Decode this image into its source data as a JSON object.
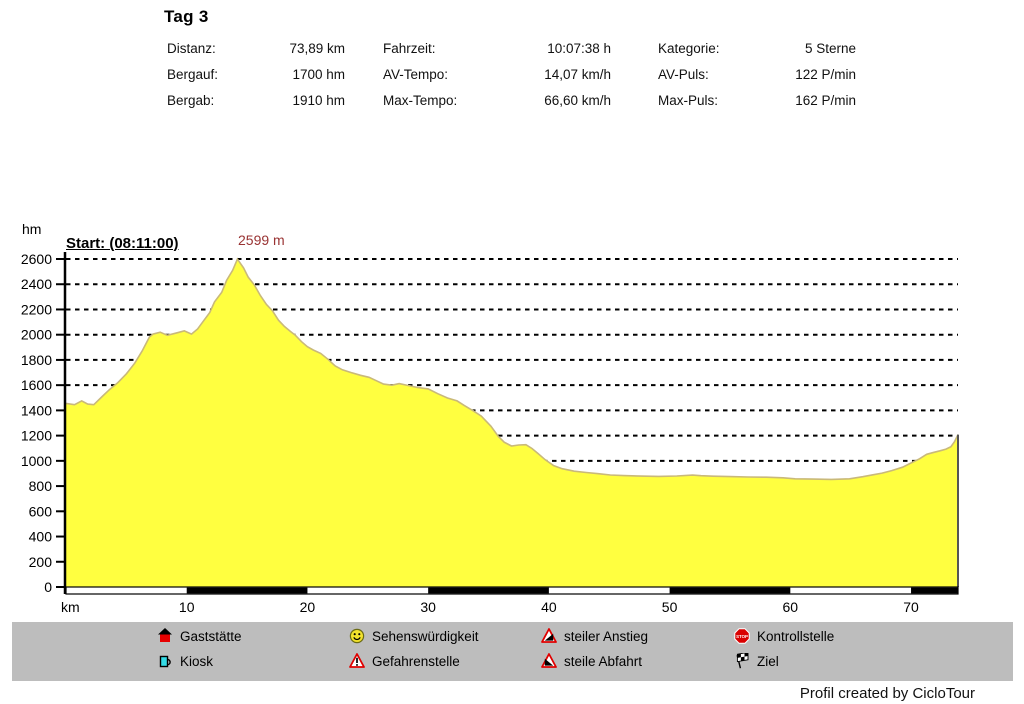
{
  "header": {
    "title": "Tag 3",
    "stats": [
      {
        "label": "Distanz:",
        "value": "73,89 km"
      },
      {
        "label": "Fahrzeit:",
        "value": "10:07:38 h"
      },
      {
        "label": "Kategorie:",
        "value": "5 Sterne"
      },
      {
        "label": "Bergauf:",
        "value": "1700 hm"
      },
      {
        "label": "AV-Tempo:",
        "value": "14,07 km/h"
      },
      {
        "label": "AV-Puls:",
        "value": "122 P/min"
      },
      {
        "label": "Bergab:",
        "value": "1910 hm"
      },
      {
        "label": "Max-Tempo:",
        "value": "66,60 km/h"
      },
      {
        "label": "Max-Puls:",
        "value": "162 P/min"
      }
    ]
  },
  "chart_data": {
    "type": "area",
    "title": "Tag 3 elevation profile",
    "xlabel": "km",
    "ylabel": "hm",
    "xlim": [
      0,
      73.89
    ],
    "ylim": [
      0,
      2600
    ],
    "xticks": [
      10,
      20,
      30,
      40,
      50,
      60,
      70
    ],
    "yticks": [
      0,
      200,
      400,
      600,
      800,
      1000,
      1200,
      1400,
      1600,
      1800,
      2000,
      2200,
      2400,
      2600
    ],
    "grid": "horizontal-dashed",
    "annotations": {
      "start": "Start: (08:11:00)",
      "peak": "2599 m"
    },
    "colors": {
      "fill": "#ffff40",
      "outline": "#c9b97a",
      "peak_label": "#993333",
      "axis": "#000000",
      "end_edge": "#555555"
    },
    "profile": [
      [
        0,
        1455
      ],
      [
        0.7,
        1445
      ],
      [
        1.3,
        1475
      ],
      [
        1.8,
        1450
      ],
      [
        2.3,
        1445
      ],
      [
        3,
        1510
      ],
      [
        3.6,
        1565
      ],
      [
        4.3,
        1620
      ],
      [
        5,
        1690
      ],
      [
        5.7,
        1775
      ],
      [
        6.3,
        1870
      ],
      [
        6.9,
        1980
      ],
      [
        7.2,
        2005
      ],
      [
        7.8,
        2020
      ],
      [
        8.4,
        1995
      ],
      [
        9.2,
        2015
      ],
      [
        9.8,
        2030
      ],
      [
        10.4,
        2005
      ],
      [
        10.9,
        2045
      ],
      [
        11.4,
        2110
      ],
      [
        11.9,
        2175
      ],
      [
        12.3,
        2260
      ],
      [
        12.9,
        2335
      ],
      [
        13.3,
        2430
      ],
      [
        13.8,
        2510
      ],
      [
        14.2,
        2599
      ],
      [
        14.7,
        2530
      ],
      [
        15.1,
        2455
      ],
      [
        15.6,
        2395
      ],
      [
        16.1,
        2310
      ],
      [
        16.6,
        2240
      ],
      [
        17.1,
        2190
      ],
      [
        17.6,
        2115
      ],
      [
        18.1,
        2065
      ],
      [
        18.6,
        2025
      ],
      [
        19,
        1995
      ],
      [
        19.5,
        1945
      ],
      [
        20,
        1905
      ],
      [
        20.5,
        1878
      ],
      [
        21.1,
        1852
      ],
      [
        21.7,
        1805
      ],
      [
        22.3,
        1752
      ],
      [
        22.9,
        1722
      ],
      [
        23.6,
        1700
      ],
      [
        24.4,
        1678
      ],
      [
        25.1,
        1662
      ],
      [
        25.7,
        1635
      ],
      [
        26.3,
        1608
      ],
      [
        27,
        1600
      ],
      [
        27.6,
        1612
      ],
      [
        28.3,
        1598
      ],
      [
        29.1,
        1582
      ],
      [
        30,
        1570
      ],
      [
        30.8,
        1532
      ],
      [
        31.6,
        1498
      ],
      [
        32.4,
        1475
      ],
      [
        33,
        1438
      ],
      [
        33.7,
        1398
      ],
      [
        34.4,
        1355
      ],
      [
        35.2,
        1275
      ],
      [
        35.8,
        1195
      ],
      [
        36.3,
        1148
      ],
      [
        36.9,
        1118
      ],
      [
        37.5,
        1126
      ],
      [
        38.1,
        1128
      ],
      [
        38.6,
        1098
      ],
      [
        39.1,
        1058
      ],
      [
        39.7,
        1008
      ],
      [
        40.4,
        962
      ],
      [
        41.1,
        938
      ],
      [
        42.1,
        918
      ],
      [
        43.1,
        908
      ],
      [
        44.1,
        898
      ],
      [
        45.1,
        888
      ],
      [
        46.2,
        883
      ],
      [
        47.6,
        879
      ],
      [
        49.1,
        877
      ],
      [
        50.6,
        880
      ],
      [
        51.9,
        887
      ],
      [
        52.6,
        882
      ],
      [
        53.6,
        878
      ],
      [
        55,
        875
      ],
      [
        56.5,
        872
      ],
      [
        58,
        870
      ],
      [
        59.4,
        866
      ],
      [
        60.4,
        858
      ],
      [
        61.9,
        855
      ],
      [
        63.4,
        853
      ],
      [
        64.9,
        858
      ],
      [
        66,
        874
      ],
      [
        66.9,
        890
      ],
      [
        67.6,
        903
      ],
      [
        68.4,
        923
      ],
      [
        69.3,
        950
      ],
      [
        70,
        983
      ],
      [
        70.7,
        1016
      ],
      [
        71.3,
        1052
      ],
      [
        71.9,
        1068
      ],
      [
        72.4,
        1080
      ],
      [
        72.9,
        1093
      ],
      [
        73.3,
        1112
      ],
      [
        73.6,
        1152
      ],
      [
        73.89,
        1208
      ]
    ],
    "scalebar": {
      "segment_km": 10,
      "colors": [
        "#ffffff",
        "#000000"
      ]
    }
  },
  "legend": {
    "items": [
      {
        "icon": "restaurant-house-icon",
        "label": "Gaststätte"
      },
      {
        "icon": "kiosk-mug-icon",
        "label": "Kiosk"
      },
      {
        "icon": "sight-smiley-icon",
        "label": "Sehenswürdigkeit"
      },
      {
        "icon": "danger-spot-icon",
        "label": "Gefahrenstelle"
      },
      {
        "icon": "steep-ascent-icon",
        "label": "steiler Anstieg"
      },
      {
        "icon": "steep-descent-icon",
        "label": "steile Abfahrt"
      },
      {
        "icon": "checkpoint-stop-icon",
        "label": "Kontrollstelle"
      },
      {
        "icon": "finish-flag-icon",
        "label": "Ziel"
      }
    ]
  },
  "footer": {
    "credit": "Profil created by CicloTour"
  }
}
